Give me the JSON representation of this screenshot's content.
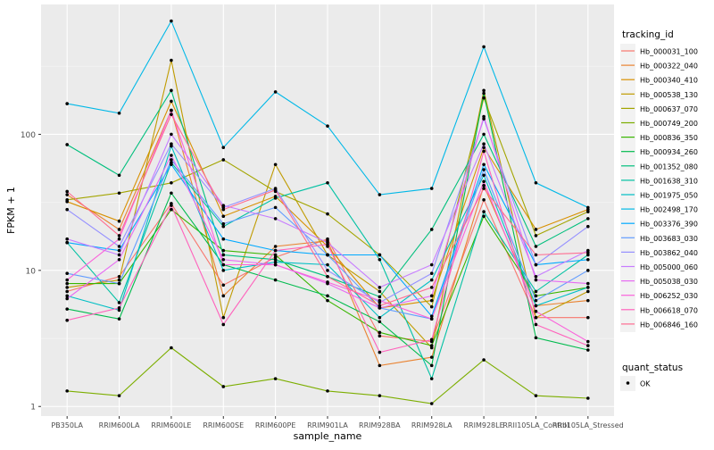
{
  "chart_data": {
    "type": "line",
    "xlabel": "sample_name",
    "ylabel": "FPKM + 1",
    "yscale": "log10",
    "ylim": [
      0.85,
      900
    ],
    "yticks": [
      1,
      10,
      100
    ],
    "ytick_labels": [
      "1",
      "10",
      "100"
    ],
    "grid": true,
    "background": "#EBEBEB",
    "legend_position": "right",
    "legend_title": "tracking_id",
    "legend2_title": "quant_status",
    "legend2_entries": [
      "OK"
    ],
    "categories": [
      "PB350LA",
      "RRIM600LA",
      "RRIM600LE",
      "RRIM600SE",
      "RRIM600PE",
      "RRIM901LA",
      "RRIM928BA",
      "RRIM928LA",
      "RRIM928LE",
      "RRII105LA_Control",
      "RRII105LA_Stressed"
    ],
    "series": [
      {
        "name": "Hb_000031_100",
        "color": "#F8766D",
        "values": [
          7,
          9,
          31,
          7.8,
          12.5,
          17,
          3.3,
          3,
          33,
          4.5,
          4.5
        ]
      },
      {
        "name": "Hb_000322_040",
        "color": "#EA8331",
        "values": [
          36,
          20,
          150,
          6.5,
          15,
          16.5,
          2,
          2.3,
          42,
          5.5,
          6
        ]
      },
      {
        "name": "Hb_000340_410",
        "color": "#D89000",
        "values": [
          32,
          23,
          175,
          25,
          35,
          15,
          5.3,
          6,
          80,
          20,
          28
        ]
      },
      {
        "name": "Hb_000538_130",
        "color": "#C09B00",
        "values": [
          7.5,
          8.5,
          350,
          4.5,
          60,
          13,
          7,
          2.7,
          210,
          4.5,
          7
        ]
      },
      {
        "name": "Hb_000637_070",
        "color": "#A3A500",
        "values": [
          33,
          37,
          44,
          65,
          38,
          26,
          13,
          5.4,
          185,
          18,
          27
        ]
      },
      {
        "name": "Hb_000749_200",
        "color": "#7CAE00",
        "values": [
          1.3,
          1.2,
          2.7,
          1.4,
          1.6,
          1.3,
          1.2,
          1.05,
          2.2,
          1.2,
          1.15
        ]
      },
      {
        "name": "Hb_000836_350",
        "color": "#39B600",
        "values": [
          8,
          8,
          28,
          14,
          13,
          6,
          3.5,
          2.8,
          25,
          6.5,
          7.5
        ]
      },
      {
        "name": "Hb_000934_260",
        "color": "#00BB4E",
        "values": [
          5.2,
          4.4,
          37,
          11,
          8.5,
          6.5,
          4.2,
          2,
          200,
          3.2,
          2.6
        ]
      },
      {
        "name": "Hb_001352_080",
        "color": "#00BF7D",
        "values": [
          84,
          50,
          210,
          13,
          12,
          9,
          6.4,
          20,
          100,
          15,
          24
        ]
      },
      {
        "name": "Hb_001638_310",
        "color": "#00C1A3",
        "values": [
          16,
          5.8,
          62,
          21,
          34,
          44,
          12,
          1.6,
          27,
          7,
          13
        ]
      },
      {
        "name": "Hb_001975_050",
        "color": "#00BFC4",
        "values": [
          6.5,
          5.1,
          82,
          10,
          11.5,
          11,
          4.5,
          8.5,
          50,
          5.5,
          7.5
        ]
      },
      {
        "name": "Hb_002498_170",
        "color": "#00B8E7",
        "values": [
          168,
          143,
          680,
          80,
          205,
          115,
          36,
          40,
          440,
          44,
          29
        ]
      },
      {
        "name": "Hb_003376_390",
        "color": "#00A9FF",
        "values": [
          16,
          14,
          60,
          17,
          14,
          13,
          13,
          4.6,
          60,
          11,
          12
        ]
      },
      {
        "name": "Hb_003683_030",
        "color": "#619CFF",
        "values": [
          9.5,
          8,
          65,
          22,
          29,
          13,
          5.3,
          4.4,
          55,
          6,
          10
        ]
      },
      {
        "name": "Hb_003862_040",
        "color": "#9590FF",
        "values": [
          28,
          15,
          85,
          29,
          40,
          10,
          5.8,
          9.5,
          130,
          11,
          21
        ]
      },
      {
        "name": "Hb_005000_060",
        "color": "#C77CFF",
        "values": [
          17,
          13,
          100,
          30,
          24,
          16,
          7.5,
          11,
          85,
          9,
          14
        ]
      },
      {
        "name": "Hb_005038_030",
        "color": "#E76BF3",
        "values": [
          6.2,
          12,
          70,
          12,
          11,
          8,
          5.3,
          6.5,
          135,
          8.5,
          8
        ]
      },
      {
        "name": "Hb_006252_030",
        "color": "#FA62DB",
        "values": [
          8.5,
          17,
          150,
          11,
          11,
          8.2,
          6,
          4.4,
          45,
          5,
          3
        ]
      },
      {
        "name": "Hb_006618_070",
        "color": "#FF62BC",
        "values": [
          4.3,
          5.3,
          30,
          4,
          14,
          15.5,
          2.5,
          3.1,
          75,
          4,
          2.8
        ]
      },
      {
        "name": "Hb_006846_160",
        "color": "#FF6C91",
        "values": [
          38,
          18,
          140,
          28,
          39,
          9,
          5.5,
          7.5,
          40,
          13,
          13.5
        ]
      }
    ]
  }
}
